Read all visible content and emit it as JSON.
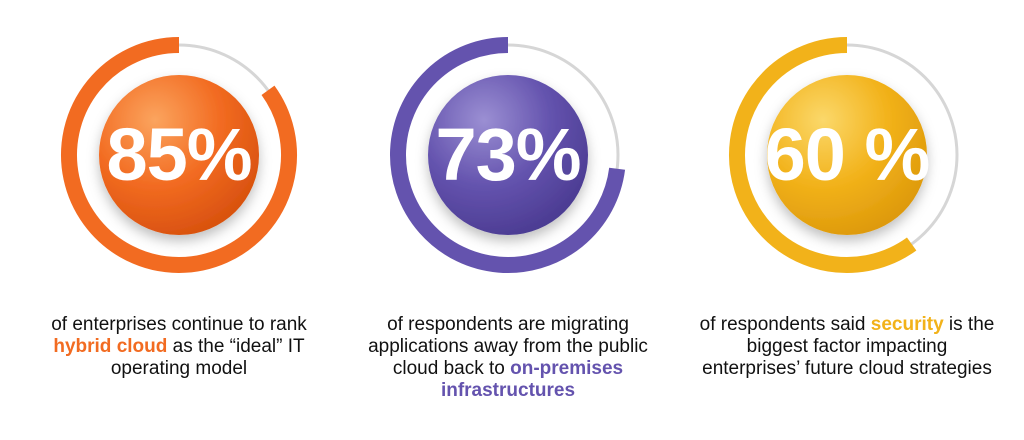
{
  "stats": [
    {
      "value": "85%",
      "level": 0.85,
      "color": "#F26B21",
      "caption": {
        "before": "of enterprises continue to rank ",
        "highlight": "hybrid cloud",
        "after": " as the “ideal” IT operating model"
      }
    },
    {
      "value": "73%",
      "level": 0.73,
      "color": "#6453AE",
      "caption": {
        "before": "of respondents are migrating applications away from the public cloud back to ",
        "highlight": "on-premises infrastructures",
        "after": ""
      }
    },
    {
      "value": "60 %",
      "level": 0.6,
      "color": "#F2B21A",
      "caption": {
        "before": "of respondents said ",
        "highlight": "security",
        "after": " is the biggest factor impacting enterprises’ future cloud strategies"
      }
    }
  ]
}
